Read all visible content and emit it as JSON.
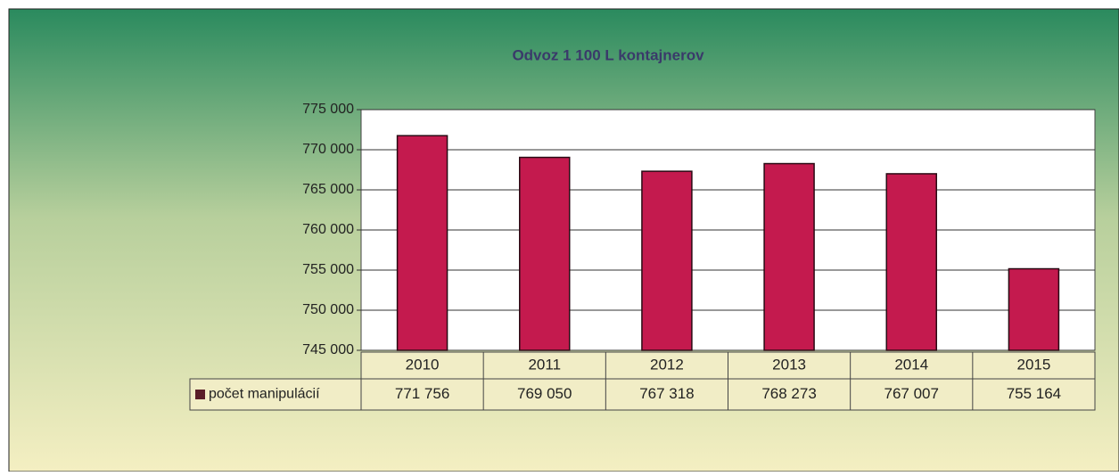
{
  "chart_data": {
    "type": "bar",
    "title": "Odvoz 1 100 L kontajnerov",
    "categories": [
      "2010",
      "2011",
      "2012",
      "2013",
      "2014",
      "2015"
    ],
    "series": [
      {
        "name": "počet manipulácií",
        "color": "#c41a4e",
        "values": [
          771756,
          769050,
          767318,
          768273,
          767007,
          755164
        ],
        "value_labels": [
          "771 756",
          "769 050",
          "767 318",
          "768 273",
          "767 007",
          "755 164"
        ]
      }
    ],
    "ylim": [
      745000,
      775000
    ],
    "yticks": [
      {
        "value": 745000,
        "label": "745 000"
      },
      {
        "value": 750000,
        "label": "750 000"
      },
      {
        "value": 755000,
        "label": "755 000"
      },
      {
        "value": 760000,
        "label": "760 000"
      },
      {
        "value": 765000,
        "label": "765 000"
      },
      {
        "value": 770000,
        "label": "770 000"
      },
      {
        "value": 775000,
        "label": "775 000"
      }
    ],
    "grid": true
  }
}
